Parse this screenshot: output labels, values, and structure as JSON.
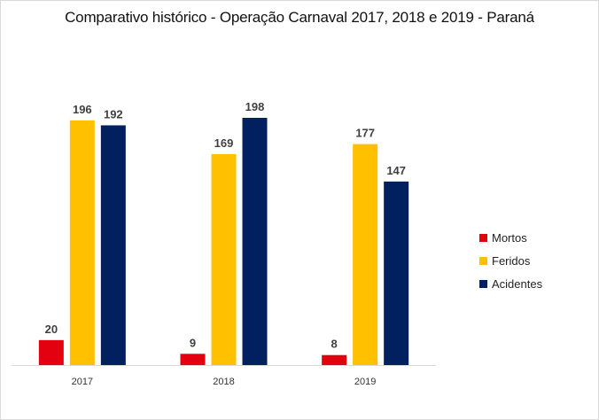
{
  "chart_data": {
    "type": "bar",
    "title": "Comparativo histórico - Operação Carnaval 2017, 2018 e 2019 - Paraná",
    "categories": [
      "2017",
      "2018",
      "2019"
    ],
    "series": [
      {
        "name": "Mortos",
        "color": "#e3000f",
        "values": [
          20,
          9,
          8
        ]
      },
      {
        "name": "Feridos",
        "color": "#ffc000",
        "values": [
          196,
          169,
          177
        ]
      },
      {
        "name": "Acidentes",
        "color": "#002060",
        "values": [
          192,
          198,
          147
        ]
      }
    ],
    "ylim": [
      0,
      220
    ],
    "grid": false,
    "legend_position": "right"
  }
}
